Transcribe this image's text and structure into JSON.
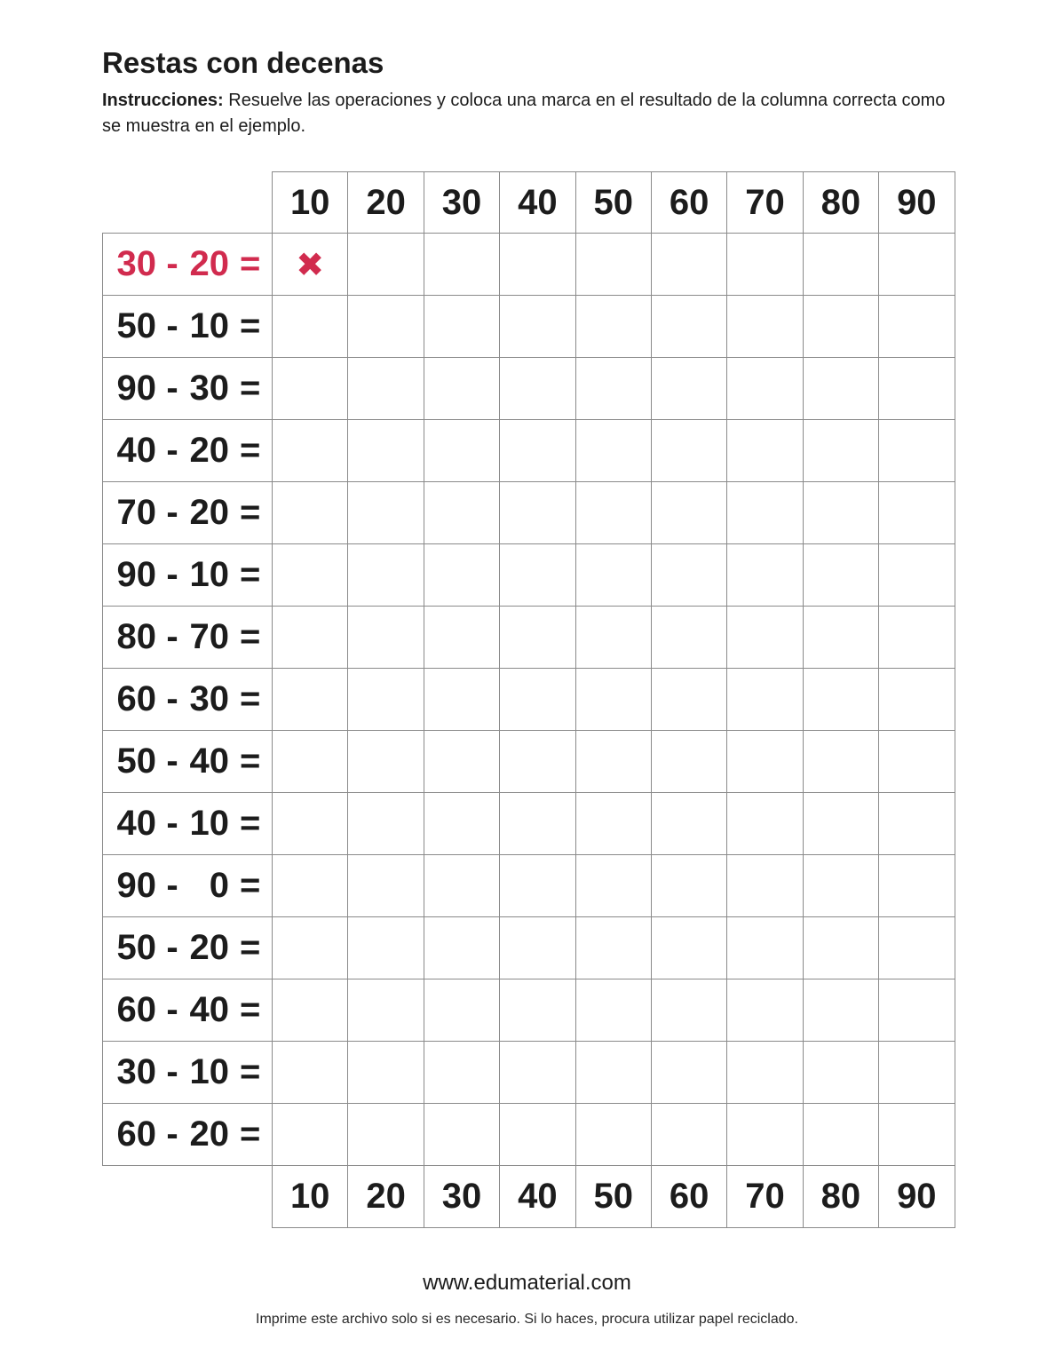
{
  "page": {
    "title": "Restas con decenas",
    "instructions_label": "Instrucciones:",
    "instructions_text": " Resuelve las operaciones y coloca una marca en el resultado de la columna correcta como se muestra en el ejemplo."
  },
  "worksheet": {
    "column_headers": [
      "10",
      "20",
      "30",
      "40",
      "50",
      "60",
      "70",
      "80",
      "90"
    ],
    "footer_headers": [
      "10",
      "20",
      "30",
      "40",
      "50",
      "60",
      "70",
      "80",
      "90"
    ],
    "operator": "-",
    "equals": "=",
    "example_mark": "✖",
    "rows": [
      {
        "minuend": "30",
        "subtrahend": "20",
        "example": true,
        "marked_column_index": 0
      },
      {
        "minuend": "50",
        "subtrahend": "10"
      },
      {
        "minuend": "90",
        "subtrahend": "30"
      },
      {
        "minuend": "40",
        "subtrahend": "20"
      },
      {
        "minuend": "70",
        "subtrahend": "20"
      },
      {
        "minuend": "90",
        "subtrahend": "10"
      },
      {
        "minuend": "80",
        "subtrahend": "70"
      },
      {
        "minuend": "60",
        "subtrahend": "30"
      },
      {
        "minuend": "50",
        "subtrahend": "40"
      },
      {
        "minuend": "40",
        "subtrahend": "10"
      },
      {
        "minuend": "90",
        "subtrahend": "0"
      },
      {
        "minuend": "50",
        "subtrahend": "20"
      },
      {
        "minuend": "60",
        "subtrahend": "40"
      },
      {
        "minuend": "30",
        "subtrahend": "10"
      },
      {
        "minuend": "60",
        "subtrahend": "20"
      }
    ]
  },
  "footer": {
    "website": "www.edumaterial.com",
    "note": "Imprime este archivo solo si es necesario. Si lo haces, procura utilizar papel reciclado."
  },
  "colors": {
    "accent": "#d12b4e",
    "grid_line": "#8a8a8a",
    "text": "#1c1c1c"
  }
}
